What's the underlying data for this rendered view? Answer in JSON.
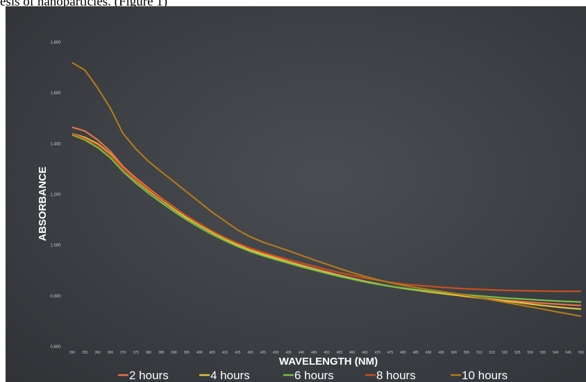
{
  "caption": "esis of nanoparticles. (Figure 1)",
  "chart_data": {
    "type": "line",
    "title": "",
    "xlabel": "WAVELENGTH (NM)",
    "ylabel": "ABSORBANCE",
    "ylim": [
      0.6,
      1.8
    ],
    "xlim": [
      350,
      550
    ],
    "yticks": [
      "0.600",
      "0.800",
      "1.000",
      "1.200",
      "1.400",
      "1.600",
      "1.800"
    ],
    "ytick_values": [
      0.6,
      0.8,
      1.0,
      1.2,
      1.4,
      1.6,
      1.8
    ],
    "x": [
      350,
      355,
      360,
      365,
      370,
      375,
      380,
      385,
      390,
      395,
      400,
      405,
      410,
      415,
      420,
      425,
      430,
      435,
      440,
      445,
      450,
      455,
      460,
      465,
      470,
      475,
      480,
      485,
      490,
      495,
      500,
      505,
      510,
      515,
      520,
      525,
      530,
      535,
      540,
      545,
      550
    ],
    "grid": false,
    "legend_position": "bottom",
    "series": [
      {
        "name": "2 hours",
        "color": "#e8734a",
        "values": [
          1.465,
          1.45,
          1.415,
          1.37,
          1.31,
          1.265,
          1.225,
          1.185,
          1.15,
          1.115,
          1.085,
          1.055,
          1.03,
          1.005,
          0.985,
          0.968,
          0.952,
          0.936,
          0.922,
          0.908,
          0.895,
          0.882,
          0.87,
          0.858,
          0.848,
          0.838,
          0.83,
          0.823,
          0.816,
          0.81,
          0.804,
          0.798,
          0.793,
          0.788,
          0.783,
          0.779,
          0.775,
          0.771,
          0.768,
          0.765,
          0.762
        ]
      },
      {
        "name": "4 hours",
        "color": "#e3c23a",
        "values": [
          1.44,
          1.425,
          1.4,
          1.36,
          1.3,
          1.255,
          1.215,
          1.178,
          1.142,
          1.108,
          1.078,
          1.05,
          1.025,
          1.0,
          0.98,
          0.963,
          0.948,
          0.933,
          0.919,
          0.905,
          0.892,
          0.88,
          0.868,
          0.857,
          0.847,
          0.838,
          0.83,
          0.823,
          0.816,
          0.81,
          0.804,
          0.798,
          0.792,
          0.786,
          0.78,
          0.774,
          0.768,
          0.762,
          0.757,
          0.752,
          0.748
        ]
      },
      {
        "name": "6 hours",
        "color": "#7bc043",
        "values": [
          1.435,
          1.415,
          1.385,
          1.345,
          1.29,
          1.245,
          1.205,
          1.168,
          1.133,
          1.1,
          1.07,
          1.042,
          1.018,
          0.995,
          0.975,
          0.958,
          0.943,
          0.929,
          0.915,
          0.902,
          0.889,
          0.877,
          0.866,
          0.855,
          0.846,
          0.838,
          0.831,
          0.825,
          0.819,
          0.814,
          0.809,
          0.804,
          0.8,
          0.796,
          0.792,
          0.789,
          0.786,
          0.783,
          0.78,
          0.778,
          0.776
        ]
      },
      {
        "name": "8 hours",
        "color": "#c8501e",
        "values": [
          1.44,
          1.42,
          1.395,
          1.355,
          1.3,
          1.258,
          1.22,
          1.182,
          1.148,
          1.115,
          1.084,
          1.056,
          1.03,
          1.008,
          0.988,
          0.972,
          0.957,
          0.943,
          0.93,
          0.917,
          0.904,
          0.892,
          0.881,
          0.871,
          0.862,
          0.854,
          0.847,
          0.842,
          0.838,
          0.834,
          0.831,
          0.828,
          0.826,
          0.824,
          0.822,
          0.821,
          0.82,
          0.819,
          0.818,
          0.818,
          0.818
        ]
      },
      {
        "name": "10 hours",
        "color": "#b07a1a",
        "values": [
          1.72,
          1.69,
          1.62,
          1.54,
          1.44,
          1.38,
          1.33,
          1.29,
          1.25,
          1.21,
          1.17,
          1.13,
          1.095,
          1.06,
          1.033,
          1.012,
          0.995,
          0.978,
          0.96,
          0.942,
          0.925,
          0.908,
          0.892,
          0.877,
          0.864,
          0.852,
          0.842,
          0.833,
          0.825,
          0.818,
          0.81,
          0.802,
          0.793,
          0.784,
          0.775,
          0.766,
          0.757,
          0.748,
          0.738,
          0.729,
          0.72
        ]
      }
    ]
  }
}
